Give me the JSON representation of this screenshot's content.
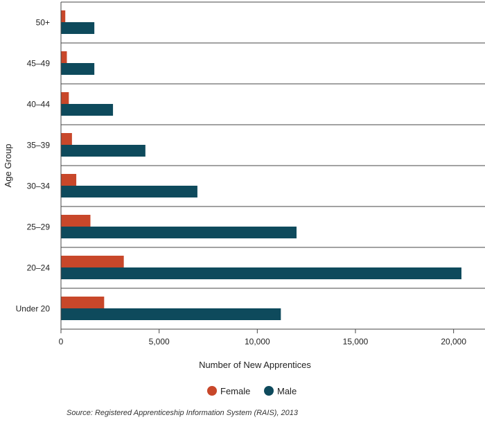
{
  "chart_data": {
    "type": "bar",
    "orientation": "horizontal",
    "categories": [
      "50+",
      "45–49",
      "40–44",
      "35–39",
      "30–34",
      "25–29",
      "20–24",
      "Under 20"
    ],
    "series": [
      {
        "name": "Female",
        "color": "#c8472a",
        "values": [
          220,
          300,
          400,
          560,
          780,
          1500,
          3200,
          2200
        ]
      },
      {
        "name": "Male",
        "color": "#0e4a5c",
        "values": [
          1700,
          1700,
          2650,
          4300,
          6950,
          12000,
          20400,
          11200
        ]
      }
    ],
    "xlabel": "Number of New Apprentices",
    "ylabel": "Age Group",
    "xlim": [
      0,
      21600
    ],
    "xticks": [
      0,
      5000,
      10000,
      15000,
      20000
    ],
    "xtick_labels": [
      "0",
      "5,000",
      "10,000",
      "15,000",
      "20,000"
    ],
    "grid": "horizontal separators between groups",
    "legend_position": "bottom"
  },
  "source_text": "Source: Registered Apprenticeship Information System (RAIS), 2013"
}
